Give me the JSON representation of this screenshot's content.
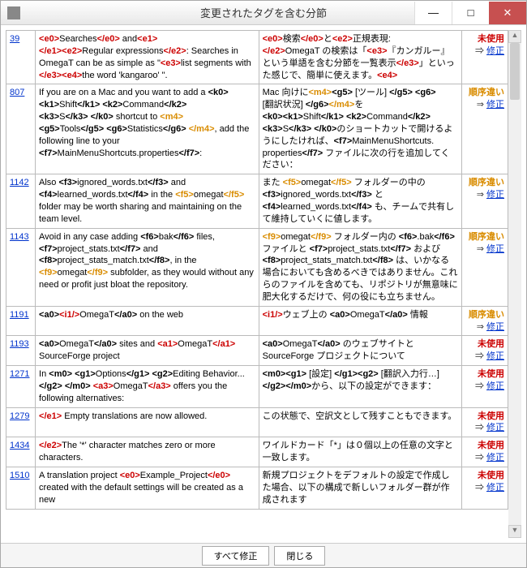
{
  "window": {
    "title": "変更されたタグを含む分節",
    "minimize": "—",
    "maximize": "□",
    "close": "✕"
  },
  "status": {
    "unused": "未使用",
    "order": "順序違い",
    "arrow": "⇒",
    "fix": "修正"
  },
  "footer": {
    "fixall": "すべて修正",
    "close": "閉じる"
  },
  "rows": [
    {
      "id": "39",
      "src": "<span class='tag-red'>&lt;e0&gt;</span>Searches<span class='tag-red'>&lt;/e0&gt;</span> and<span class='tag-red'>&lt;e1&gt;<br>&lt;/e1&gt;&lt;e2&gt;</span>Regular expressions<span class='tag-red'>&lt;/e2&gt;</span>: Searches in OmegaT can be as simple as \"<span class='tag-red'>&lt;e3&gt;</span>list segments with <span class='tag-red'>&lt;/e3&gt;&lt;e4&gt;</span>the word 'kangaroo' \".",
      "tgt": "<span class='tag-red'>&lt;e0&gt;</span>検索<span class='tag-red'>&lt;/e0&gt;</span>と<span class='tag-red'>&lt;e2&gt;</span>正規表現:<br><span class='tag-red'>&lt;/e2&gt;</span>OmegaT の検索は「<span class='tag-red'>&lt;e3&gt;</span>『カンガルー』という単語を含む分節を一覧表示<span class='tag-red'>&lt;/e3&gt;</span>」といった感じで、簡単に使えます。<span class='tag-red'>&lt;e4&gt;</span>",
      "stat": "unused"
    },
    {
      "id": "807",
      "src": "If you are on a Mac and you want to add a <b>&lt;k0&gt;<br>&lt;k1&gt;</b>Shift<b>&lt;/k1&gt; &lt;k2&gt;</b>Command<b>&lt;/k2&gt;<br>&lt;k3&gt;</b>S<b>&lt;/k3&gt; &lt;/k0&gt;</b> shortcut to <span class='tag-org'>&lt;m4&gt;</span><br><b>&lt;g5&gt;</b>Tools<b>&lt;/g5&gt; &lt;g6&gt;</b>Statistics<b>&lt;/g6&gt; </b><span class='tag-org'>&lt;/m4&gt;</span>, add the following line to your <b>&lt;f7&gt;</b>MainMenuShortcuts.properties<b>&lt;/f7&gt;</b>:",
      "tgt": "Mac 向けに<span class='tag-org'>&lt;m4&gt;</span><b>&lt;g5&gt;</b> [ツール] <b>&lt;/g5&gt; &lt;g6&gt;</b><br>[翻訳状況] <b>&lt;/g6&gt;</b><span class='tag-org'>&lt;/m4&gt;</span>を<br><b>&lt;k0&gt;&lt;k1&gt;</b>Shift<b>&lt;/k1&gt; &lt;k2&gt;</b>Command<b>&lt;/k2&gt;<br>&lt;k3&gt;</b>S<b>&lt;/k3&gt; &lt;/k0&gt;</b>のショートカットで開けるようにしたければ、<b>&lt;f7&gt;</b>MainMenuShortcuts.<br>properties<b>&lt;/f7&gt;</b> ファイルに次の行を追加してください：",
      "stat": "order"
    },
    {
      "id": "1142",
      "src": "Also <b>&lt;f3&gt;</b>ignored_words.txt<b>&lt;/f3&gt;</b> and <b>&lt;f4&gt;</b>learned_words.txt<b>&lt;/f4&gt;</b> in the <span class='tag-org'>&lt;f5&gt;</span>omegat<span class='tag-org'>&lt;/f5&gt;</span> folder may be worth sharing and maintaining on the team level.",
      "tgt": "また <span class='tag-org'>&lt;f5&gt;</span>omegat<span class='tag-org'>&lt;/f5&gt;</span> フォルダーの中の <b>&lt;f3&gt;</b>ignored_words.txt<b>&lt;/f3&gt;</b> と <b>&lt;f4&gt;</b>learned_words.txt<b>&lt;/f4&gt;</b> も、チームで共有して維持していくに値します。",
      "stat": "order"
    },
    {
      "id": "1143",
      "src": "Avoid in any case adding <b>&lt;f6&gt;</b>bak<b>&lt;/f6&gt;</b> files, <b>&lt;f7&gt;</b>project_stats.txt<b>&lt;/f7&gt;</b> and <b>&lt;f8&gt;</b>project_stats_match.txt<b>&lt;/f8&gt;</b>, in the <span class='tag-org'>&lt;f9&gt;</span>omegat<span class='tag-org'>&lt;/f9&gt;</span> subfolder, as they would without any need or profit just bloat the repository.",
      "tgt": "<span class='tag-org'>&lt;f9&gt;</span>omegat<span class='tag-org'>&lt;/f9&gt;</span> フォルダー内の <b>&lt;f6&gt;</b>.bak<b>&lt;/f6&gt;</b> ファイルと <b>&lt;f7&gt;</b>project_stats.txt<b>&lt;/f7&gt;</b> および <b>&lt;f8&gt;</b>project_stats_match.txt<b>&lt;/f8&gt;</b> は、いかなる場合においても含めるべきではありません。これらのファイルを含めても、リポジトリが無意味に肥大化するだけで、何の役にも立ちません。",
      "stat": "order"
    },
    {
      "id": "1191",
      "src": "<b>&lt;a0&gt;</b><span class='tag-red'>&lt;i1/&gt;</span>OmegaT<b>&lt;/a0&gt;</b> on the web",
      "tgt": "<span class='tag-red'>&lt;i1/&gt;</span>ウェブ上の <b>&lt;a0&gt;</b>OmegaT<b>&lt;/a0&gt;</b> 情報",
      "stat": "order"
    },
    {
      "id": "1193",
      "src": "<b>&lt;a0&gt;</b>OmegaT<b>&lt;/a0&gt;</b> sites and <span class='tag-red'>&lt;a1&gt;</span>OmegaT<span class='tag-red'>&lt;/a1&gt;</span> SourceForge project",
      "tgt": "<b>&lt;a0&gt;</b>OmegaT<b>&lt;/a0&gt;</b> のウェブサイトと SourceForge プロジェクトについて",
      "stat": "unused"
    },
    {
      "id": "1271",
      "src": "In <b>&lt;m0&gt; &lt;g1&gt;</b>Options<b>&lt;/g1&gt; &lt;g2&gt;</b>Editing Behavior...<b>&lt;/g2&gt; &lt;/m0&gt;</b> <span class='tag-red'>&lt;a3&gt;</span>OmegaT<span class='tag-red'>&lt;/a3&gt;</span> offers you the following alternatives:",
      "tgt": "<b>&lt;m0&gt;&lt;g1&gt;</b> [設定] <b>&lt;/g1&gt;&lt;g2&gt;</b> [翻訳入力行…] <b>&lt;/g2&gt;&lt;/m0&gt;</b>から、以下の設定ができます：",
      "stat": "unused"
    },
    {
      "id": "1279",
      "src": "<span class='tag-red'>&lt;/e1&gt;</span> Empty translations are now allowed.",
      "tgt": "この状態で、空訳文として残すこともできます。",
      "stat": "unused"
    },
    {
      "id": "1434",
      "src": "<span class='tag-red'>&lt;/e2&gt;</span>The '*' character matches zero or more characters.",
      "tgt": "ワイルドカード「*」は０個以上の任意の文字と一致します。",
      "stat": "unused"
    },
    {
      "id": "1510",
      "src": "A translation project <span class='tag-red'>&lt;e0&gt;</span>Example_Project<span class='tag-red'>&lt;/e0&gt;</span> created with the default settings will be created as a new",
      "tgt": "新規プロジェクトをデフォルトの設定で作成した場合、以下の構成で新しいフォルダー群が作成されます",
      "stat": "unused"
    }
  ]
}
